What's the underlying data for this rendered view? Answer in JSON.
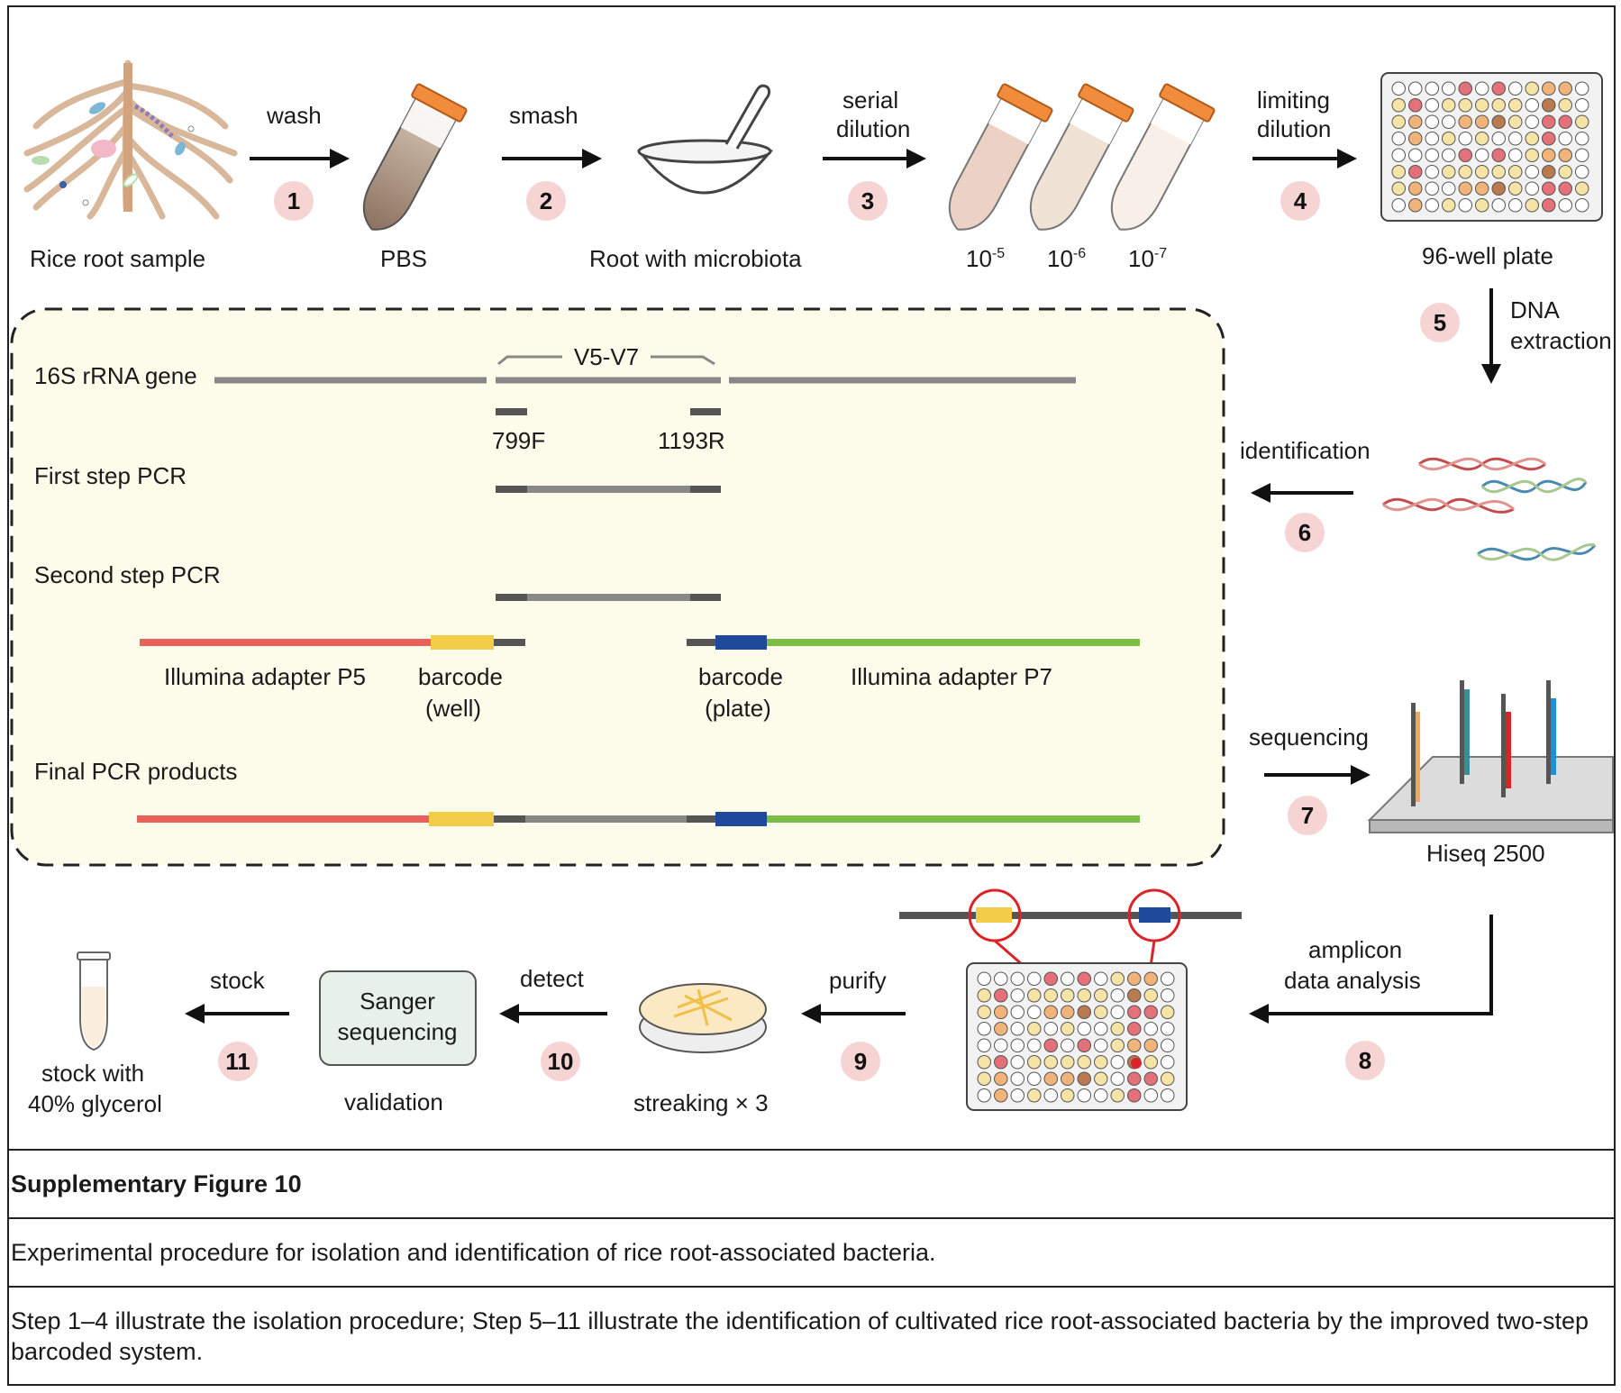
{
  "steps": {
    "s1": {
      "num": "1",
      "label": "wash"
    },
    "s2": {
      "num": "2",
      "label": "smash"
    },
    "s3": {
      "num": "3",
      "label_line1": "serial",
      "label_line2": "dilution"
    },
    "s4": {
      "num": "4",
      "label_line1": "limiting",
      "label_line2": "dilution"
    },
    "s5": {
      "num": "5",
      "label_line1": "DNA",
      "label_line2": "extraction"
    },
    "s6": {
      "num": "6",
      "label": "identification"
    },
    "s7": {
      "num": "7",
      "label": "sequencing"
    },
    "s8": {
      "num": "8",
      "label_line1": "amplicon",
      "label_line2": "data analysis"
    },
    "s9": {
      "num": "9",
      "label": "purify"
    },
    "s10": {
      "num": "10",
      "label": "detect"
    },
    "s11": {
      "num": "11",
      "label": "stock"
    }
  },
  "items": {
    "rice_root": "Rice root sample",
    "pbs": "PBS",
    "root_microbiota": "Root with microbiota",
    "dil_1": {
      "base": "10",
      "exp": "-5"
    },
    "dil_2": {
      "base": "10",
      "exp": "-6"
    },
    "dil_3": {
      "base": "10",
      "exp": "-7"
    },
    "plate_96": "96-well plate",
    "hiseq": "Hiseq 2500",
    "streaking": "streaking × 3",
    "sanger_line1": "Sanger",
    "sanger_line2": "sequencing",
    "validation": "validation",
    "stock_line1": "stock with",
    "stock_line2": "40% glycerol"
  },
  "pcr_panel": {
    "gene": "16S rRNA gene",
    "region": "V5-V7",
    "primer_f": "799F",
    "primer_r": "1193R",
    "first_step": "First step PCR",
    "second_step": "Second step PCR",
    "adapter_p5": "Illumina adapter P5",
    "barcode_well_line1": "barcode",
    "barcode_well_line2": "(well)",
    "barcode_plate_line1": "barcode",
    "barcode_plate_line2": "(plate)",
    "adapter_p7": "Illumina adapter P7",
    "final": "Final PCR products"
  },
  "colors": {
    "step_circle": "#f7d4d4",
    "adapter_p5": "#e8625a",
    "barcode_well": "#f3cc4a",
    "barcode_plate": "#1d4a9a",
    "adapter_p7": "#7cbd45",
    "gene_line": "#888888",
    "primer": "#555555",
    "panel_bg": "#fdfbea"
  },
  "caption": {
    "title": "Supplementary Figure 10",
    "description": "Experimental procedure for isolation and identification of rice root-associated bacteria.",
    "note": "Step 1–4 illustrate the isolation procedure; Step 5–11 illustrate the identification of cultivated rice root-associated bacteria by the improved two-step barcoded system."
  }
}
